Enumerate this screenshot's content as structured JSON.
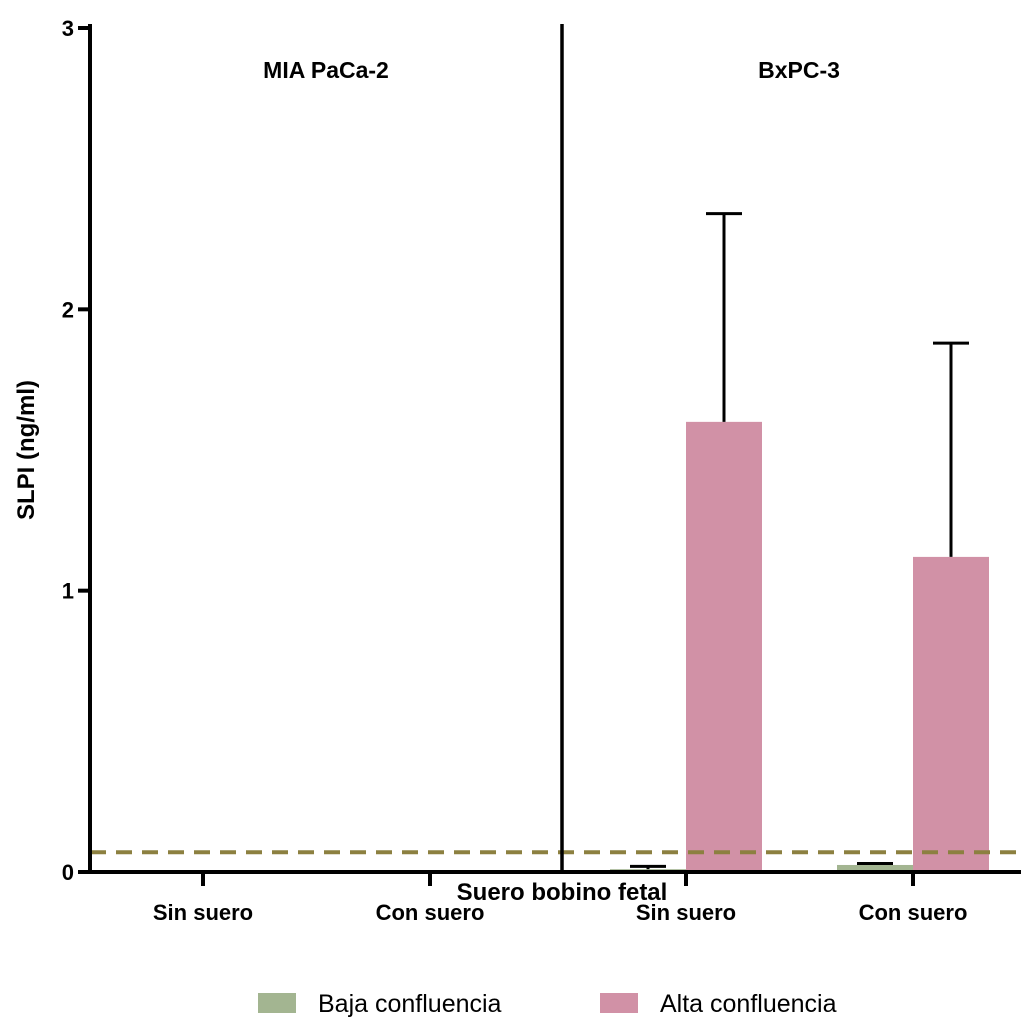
{
  "chart_data": {
    "type": "bar",
    "ylabel": "SLPI (ng/ml)",
    "xlabel": "Suero bobino fetal",
    "ylim": [
      0,
      3
    ],
    "yticks": [
      "0",
      "1",
      "2",
      "3"
    ],
    "panels": [
      {
        "label": "MIA PaCa-2",
        "categories": [
          "Sin suero",
          "Con suero"
        ],
        "series": [
          {
            "name": "Baja confluencia",
            "values": [
              0.0,
              0.0
            ],
            "errors": [
              0,
              0
            ]
          },
          {
            "name": "Alta confluencia",
            "values": [
              0.0,
              0.0
            ],
            "errors": [
              0,
              0
            ]
          }
        ]
      },
      {
        "label": "BxPC-3",
        "categories": [
          "Sin suero",
          "Con suero"
        ],
        "series": [
          {
            "name": "Baja confluencia",
            "values": [
              0.01,
              0.025
            ],
            "errors": [
              0.01,
              0.005
            ]
          },
          {
            "name": "Alta confluencia",
            "values": [
              1.6,
              1.12
            ],
            "errors": [
              0.74,
              0.76
            ]
          }
        ]
      }
    ],
    "reference_line": {
      "value": 0.07,
      "style": "dashed",
      "color": "#8c8040"
    },
    "legend": {
      "placement": "bottom",
      "entries": [
        "Baja confluencia",
        "Alta confluencia"
      ]
    },
    "colors": {
      "Baja confluencia": "#a3b591",
      "Alta confluencia": "#d191a6",
      "axis": "#000000"
    },
    "grid": false
  }
}
